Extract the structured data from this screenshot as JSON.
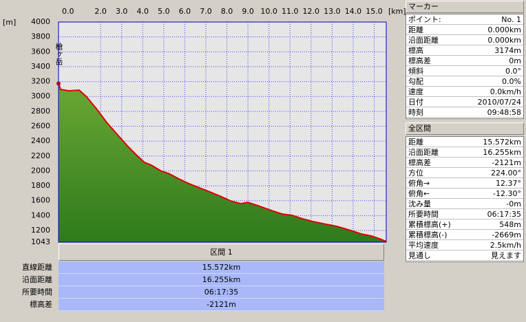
{
  "chart_data": {
    "type": "area",
    "x": [
      0,
      0.1,
      0.49,
      0.98,
      1.31,
      1.8,
      2.29,
      2.78,
      3.27,
      3.76,
      4.08,
      4.41,
      4.9,
      5.23,
      5.72,
      6.21,
      6.7,
      7.19,
      7.68,
      8.17,
      8.66,
      8.99,
      9.48,
      10.13,
      10.62,
      11.11,
      11.6,
      12.09,
      12.58,
      13.24,
      13.89,
      14.38,
      14.87,
      15.26,
      15.572
    ],
    "values": [
      3174,
      3094,
      3076,
      3085,
      3002,
      2836,
      2651,
      2494,
      2337,
      2198,
      2115,
      2078,
      1995,
      1967,
      1893,
      1828,
      1773,
      1718,
      1662,
      1598,
      1561,
      1579,
      1533,
      1468,
      1422,
      1404,
      1357,
      1320,
      1292,
      1255,
      1200,
      1154,
      1126,
      1089,
      1053
    ],
    "xlim": [
      0,
      15.572
    ],
    "ylim": [
      1043,
      4000
    ],
    "xticks": [
      {
        "value": 0,
        "label": "0.0"
      },
      {
        "value": 2,
        "label": "2.0"
      },
      {
        "value": 3,
        "label": "3.0"
      },
      {
        "value": 4,
        "label": "4.0"
      },
      {
        "value": 5,
        "label": "5.0"
      },
      {
        "value": 6,
        "label": "6.0"
      },
      {
        "value": 7,
        "label": "7.0"
      },
      {
        "value": 8,
        "label": "8.0"
      },
      {
        "value": 9,
        "label": "9.0"
      },
      {
        "value": 10,
        "label": "10.0"
      },
      {
        "value": 11,
        "label": "11.0"
      },
      {
        "value": 12,
        "label": "12.0"
      },
      {
        "value": 13,
        "label": "13.0"
      },
      {
        "value": 14,
        "label": "14.0"
      },
      {
        "value": 15,
        "label": "15.0"
      }
    ],
    "yticks": [
      1043,
      1200,
      1400,
      1600,
      1800,
      2000,
      2200,
      2400,
      2600,
      2800,
      3000,
      3200,
      3400,
      3600,
      3800,
      4000
    ],
    "x_unit": "[km]",
    "y_unit": "[m]",
    "annotation": "槍ヶ岳",
    "line_color": "#e00000",
    "fill_color": "#6aa834",
    "grid": true
  },
  "marker": {
    "title": "マーカー",
    "rows": [
      [
        "ポイント:",
        "No. 1"
      ],
      [
        "距離",
        "0.000km"
      ],
      [
        "沿面距離",
        "0.000km"
      ],
      [
        "標高",
        "3174m"
      ],
      [
        "標高差",
        "0m"
      ],
      [
        "傾斜",
        "0.0°"
      ],
      [
        "勾配",
        "0.0%"
      ],
      [
        "速度",
        "0.0km/h"
      ],
      [
        "日付",
        "2010/07/24"
      ],
      [
        "時刻",
        "09:48:58"
      ]
    ]
  },
  "whole_section": {
    "title": "全区間",
    "rows": [
      [
        "距離",
        "15.572km"
      ],
      [
        "沿面距離",
        "16.255km"
      ],
      [
        "標高差",
        "-2121m"
      ],
      [
        "方位",
        "224.00°"
      ],
      [
        "俯角→",
        "12.37°"
      ],
      [
        "俯角←",
        "-12.30°"
      ],
      [
        "沈み量",
        "-0m"
      ],
      [
        "所要時間",
        "06:17:35"
      ],
      [
        "累積標高(+)",
        "548m"
      ],
      [
        "累積標高(-)",
        "-2669m"
      ],
      [
        "平均速度",
        "2.5km/h"
      ],
      [
        "見通し",
        "見えます"
      ]
    ]
  },
  "section": {
    "title": "区間 1",
    "rows": [
      [
        "直線距離",
        "15.572km"
      ],
      [
        "沿面距離",
        "16.255km"
      ],
      [
        "所要時間",
        "06:17:35"
      ],
      [
        "標高差",
        "-2121m"
      ]
    ]
  }
}
